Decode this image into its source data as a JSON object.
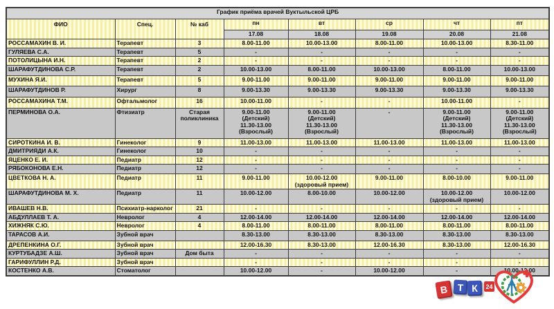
{
  "title": "График приёма врачей Вуктыльской ЦРБ",
  "table": {
    "columns": [
      "ФИО",
      "Спец.",
      "№ каб"
    ],
    "days": [
      "пн",
      "вт",
      "ср",
      "чт",
      "пт"
    ],
    "dates": [
      "17.08",
      "18.08",
      "19.08",
      "20.08",
      "21.08"
    ],
    "rows": [
      {
        "fio": "РОССАМАХИН В. И.",
        "spec": "Терапевт",
        "cab": "3",
        "times": [
          "8.00-11.00",
          "10.00-13.00",
          "8.00-11.00",
          "10.00-13.00",
          "8.30-11.00"
        ]
      },
      {
        "fio": "ГУЛЯЕВА С.А.",
        "spec": "Терапевт",
        "cab": "5",
        "times": [
          "-",
          "-",
          "-",
          "-",
          "-"
        ]
      },
      {
        "fio": "ПОТОЛИЦЫНА И.Н.",
        "spec": "Терапевт",
        "cab": "2",
        "times": [
          "-",
          "-",
          "-",
          "-",
          "-"
        ]
      },
      {
        "fio": "ШАРАФУТДИНОВА С.Р.",
        "spec": "Терапевт",
        "cab": "2",
        "times": [
          "10.00-13.00",
          "8.00-11.00",
          "10.00-13.00",
          "8.00-11.00",
          "10.00-13.00"
        ]
      },
      {
        "fio": "МУХИНА Я.И.",
        "spec": "Терапевт",
        "cab": "5",
        "times": [
          "9.00-11.00",
          "9.00-11.00",
          "9.00-11.00",
          "9.00-11.00",
          "9.00-11.00"
        ]
      },
      {
        "fio": "ШАРАФУТДИНОВ Р.",
        "spec": "Хирург",
        "cab": "8",
        "times": [
          "9.00-13.30",
          "9.00-13.30",
          "9.00-13.30",
          "9.00-13.30",
          "9.00-13.30"
        ]
      },
      {
        "fio": "РОССАМАХИНА Т.М.",
        "spec": "Офтальмолог",
        "cab": "16",
        "times": [
          "10.00-11.00",
          "-",
          "-",
          "10.00-11.00",
          "-"
        ]
      },
      {
        "fio": "ПЕРМИНОВА О.А.",
        "spec": "Фтизиатр",
        "cab": "Старая\nполиклиника",
        "times": [
          "9.00-11.00\n(Детский)\n11.30-13.00\n(Взрослый)",
          "9.00-11.00\n(Детский)\n11.30-13.00\n(Взрослый)",
          "-",
          "9.00-11.00\n(Детский)\n11.30-13.00\n(Взрослый)",
          "9.00-11.00\n(Детский)\n11.30-13.00\n(Взрослый)"
        ]
      },
      {
        "fio": "СИРОТКИНА И. В.",
        "spec": "Гинеколог",
        "cab": "9",
        "times": [
          "11.00-13.00",
          "11.00-13.00",
          "11.00-13.00",
          "11.00-13.00",
          "11.00-13.00"
        ]
      },
      {
        "fio": "ДМИТРИЯДИ А.К.",
        "spec": "Гинеколог",
        "cab": "10",
        "times": [
          "-",
          "-",
          "-",
          "-",
          "-"
        ]
      },
      {
        "fio": "ЯЦЕНКО Е. И.",
        "spec": "Педиатр",
        "cab": "12",
        "times": [
          "-",
          "-",
          "-",
          "-",
          "-"
        ]
      },
      {
        "fio": "РЯБОКОНОВА Е.Н.",
        "spec": "Педиатр",
        "cab": "12",
        "times": [
          "-",
          "-",
          "-",
          "-",
          "-"
        ]
      },
      {
        "fio": "ЦВЕТКОВА Н. А.",
        "spec": "Педиатр",
        "cab": "11",
        "times": [
          "9.00-11.00",
          "10.00-12.00\n(здоровый прием)",
          "9.00-11.00",
          "8.00-10.00",
          "9.00-11.00"
        ]
      },
      {
        "fio": "ШАРАФУТДИНОВА М. Х.",
        "spec": "Педиатр",
        "cab": "11",
        "times": [
          "10.00-12.00",
          "8.00-10.00",
          "10.00-12.00",
          "10.00-12.00\n(здоровый прием)",
          "10.00-12.00"
        ]
      },
      {
        "fio": "ИВАШЕВ Н.В.",
        "spec": "Психиатр-нарколог",
        "cab": "21",
        "times": [
          "-",
          "-",
          "-",
          "-",
          "-"
        ]
      },
      {
        "fio": "АБДУЛЛАЕВ Т. А.",
        "spec": "Невролог",
        "cab": "4",
        "times": [
          "12.00-14.00",
          "12.00-14.00",
          "12.00-14.00",
          "12.00-14.00",
          "12.00-14.00"
        ]
      },
      {
        "fio": "ХИЖНЯК С.Ю.",
        "spec": "Невролог",
        "cab": "4",
        "times": [
          "8.00-11.00",
          "8.00-11.00",
          "8.00-11.00",
          "8.00-11.00",
          "8.00-11.00"
        ]
      },
      {
        "fio": "ТАРАСОВ А.И.",
        "spec": "Зубной врач",
        "cab": "",
        "times": [
          "8.30-13.00",
          "8.30-13.00",
          "8.30-13.00",
          "8.30-13.00",
          "8.30-13.00"
        ]
      },
      {
        "fio": "ДРЕПЕНКИНА О.Г.",
        "spec": "Зубной врач",
        "cab": "",
        "times": [
          "12.00-16.30",
          "8.30-13.00",
          "12.00-16.30",
          "8.30-13.00",
          "12.00-16.30"
        ]
      },
      {
        "fio": "КУРТУБАДЗЕ А.Ш.",
        "spec": "Зубной врач",
        "cab": "Дом быта",
        "times": [
          "-",
          "-",
          "-",
          "-",
          "-"
        ]
      },
      {
        "fio": "ГАРИФУЛЛИН Р.Д.",
        "spec": "Зубной врач",
        "cab": "",
        "times": [
          "-",
          "-",
          "-",
          "-",
          "-"
        ]
      },
      {
        "fio": "КОСТЕНКО А.В.",
        "spec": "Стоматолог",
        "cab": "",
        "times": [
          "10.00-12.00",
          "-",
          "10.00-12.00",
          "-",
          "10.00-12.00"
        ]
      }
    ]
  },
  "logos": {
    "vtk": {
      "letters": [
        "В",
        "Т",
        "К"
      ],
      "badge": "24"
    }
  },
  "colors": {
    "row_yellow": "#FFFDDC",
    "row_yellow_stripe": "#F6EDA9",
    "row_gray": "#C8C8C8",
    "title_gray": "#D6D6D6",
    "date_gray": "#D2D2D2",
    "border": "#3A3A3A",
    "logo_red": "#D63434",
    "logo_blue": "#3B55B8",
    "heart_red": "#E23B3B",
    "wreath_green": "#3E9C45",
    "gear_orange": "#E8A33D",
    "figure_teal": "#2E7FA8"
  }
}
